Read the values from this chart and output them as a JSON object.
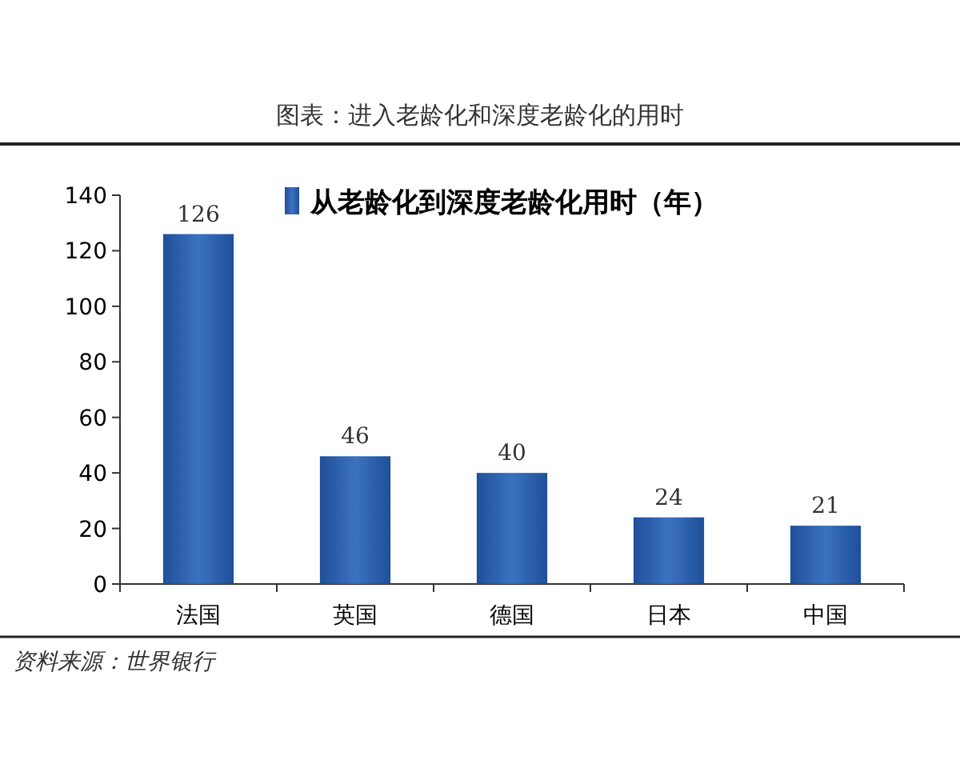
{
  "chart_data": {
    "type": "bar",
    "title": "图表：进入老龄化和深度老龄化的用时",
    "categories": [
      "法国",
      "英国",
      "德国",
      "日本",
      "中国"
    ],
    "series": [
      {
        "name": "从老龄化到深度老龄化用时（年）",
        "color": "#3b72c0",
        "values": [
          126,
          46,
          40,
          24,
          21
        ]
      }
    ],
    "ylim": [
      0,
      140
    ],
    "yticks": [
      0,
      20,
      40,
      60,
      80,
      100,
      120,
      140
    ],
    "grid": false,
    "legend": "top",
    "data_labels": true,
    "annotations": [
      "资料来源：世界银行"
    ]
  }
}
